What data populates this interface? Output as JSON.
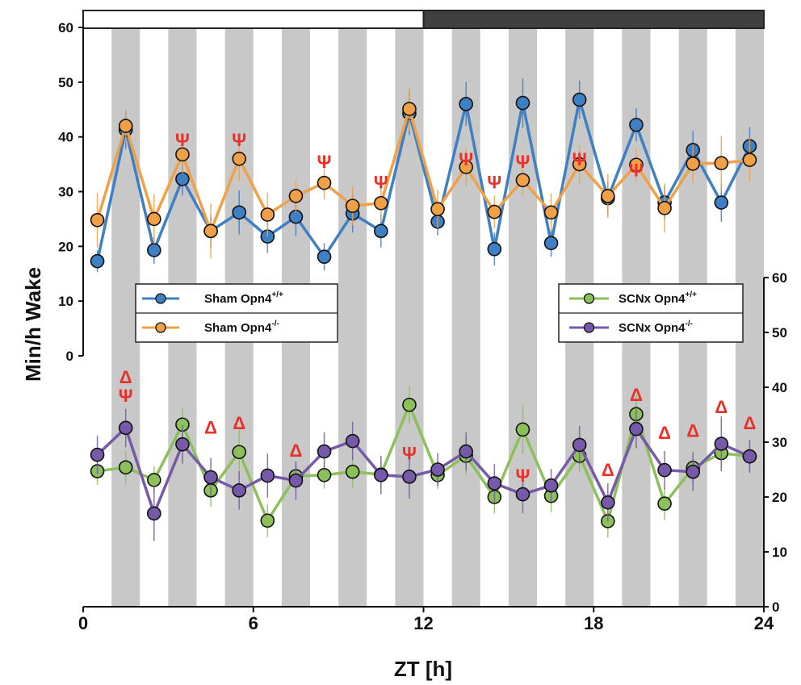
{
  "chart_data": {
    "type": "line",
    "xlabel": "ZT [h]",
    "ylabel": "Min/h Wake",
    "x_ticks": [
      "0",
      "6",
      "12",
      "18",
      "24"
    ],
    "x_range": [
      0,
      24
    ],
    "light_dark_bar": {
      "light": [
        0,
        12
      ],
      "dark": [
        12,
        24
      ],
      "light_color": "#ffffff",
      "dark_color": "#404040"
    },
    "stripe_color": "#c8c8c8",
    "stripes": [
      [
        1,
        2
      ],
      [
        3,
        4
      ],
      [
        5,
        6
      ],
      [
        7,
        8
      ],
      [
        9,
        10
      ],
      [
        11,
        12
      ],
      [
        13,
        14
      ],
      [
        15,
        16
      ],
      [
        17,
        18
      ],
      [
        19,
        20
      ],
      [
        21,
        22
      ],
      [
        23,
        24
      ]
    ],
    "panels": [
      {
        "name": "top",
        "axis_side": "left",
        "y_range": [
          0,
          60
        ],
        "y_ticks": [
          "0",
          "10",
          "20",
          "30",
          "40",
          "50",
          "60"
        ],
        "series": [
          {
            "name": "Sham Opn4",
            "sup": "+/+",
            "color": "#3f7fc4",
            "x": [
              0.5,
              1.5,
              2.5,
              3.5,
              4.5,
              5.5,
              6.5,
              7.5,
              8.5,
              9.5,
              10.5,
              11.5,
              12.5,
              13.5,
              14.5,
              15.5,
              16.5,
              17.5,
              18.5,
              19.5,
              20.5,
              21.5,
              22.5,
              23.5
            ],
            "values": [
              17.3,
              41.3,
              19.3,
              32.3,
              22.8,
              26.2,
              21.8,
              25.4,
              18.1,
              26.0,
              22.8,
              44.3,
              24.5,
              46.0,
              19.5,
              46.2,
              20.6,
              46.8,
              28.8,
              42.2,
              28.0,
              37.6,
              28.0,
              38.3
            ],
            "errors": [
              2.0,
              3.5,
              2.5,
              3.0,
              3.0,
              4.0,
              3.0,
              3.5,
              2.5,
              3.5,
              3.0,
              4.0,
              2.5,
              4.0,
              3.0,
              4.5,
              2.5,
              3.5,
              3.0,
              3.0,
              3.0,
              3.5,
              3.5,
              3.5
            ]
          },
          {
            "name": "Sham Opn4",
            "sup": "-/-",
            "color": "#f0a046",
            "x": [
              0.5,
              1.5,
              2.5,
              3.5,
              4.5,
              5.5,
              6.5,
              7.5,
              8.5,
              9.5,
              10.5,
              11.5,
              12.5,
              13.5,
              14.5,
              15.5,
              16.5,
              17.5,
              18.5,
              19.5,
              20.5,
              21.5,
              22.5,
              23.5
            ],
            "values": [
              24.8,
              42.0,
              25.0,
              36.8,
              22.8,
              36.0,
              25.8,
              29.2,
              31.6,
              27.4,
              27.9,
              45.1,
              26.8,
              34.5,
              26.3,
              32.1,
              26.2,
              35.0,
              29.2,
              34.9,
              27.0,
              35.1,
              35.2,
              35.8
            ],
            "errors": [
              5.0,
              3.0,
              4.5,
              3.5,
              5.0,
              4.0,
              4.0,
              3.0,
              3.0,
              3.5,
              3.5,
              4.0,
              3.5,
              3.5,
              3.0,
              3.0,
              3.5,
              3.5,
              4.0,
              3.0,
              4.5,
              3.5,
              5.0,
              4.0
            ]
          }
        ],
        "annotations": [
          {
            "x": 3.5,
            "y": 39.5,
            "text": "Ψ"
          },
          {
            "x": 5.5,
            "y": 39.5,
            "text": "Ψ"
          },
          {
            "x": 8.5,
            "y": 35.5,
            "text": "Ψ"
          },
          {
            "x": 10.5,
            "y": 31.8,
            "text": "Ψ"
          },
          {
            "x": 13.5,
            "y": 36.0,
            "text": "Ψ"
          },
          {
            "x": 14.5,
            "y": 31.8,
            "text": "Ψ"
          },
          {
            "x": 15.5,
            "y": 35.5,
            "text": "Ψ"
          },
          {
            "x": 17.5,
            "y": 36.0,
            "text": "Ψ"
          },
          {
            "x": 19.5,
            "y": 34.0,
            "text": "Ψ"
          }
        ]
      },
      {
        "name": "bottom",
        "axis_side": "right",
        "y_range": [
          0,
          60
        ],
        "y_ticks": [
          "0",
          "10",
          "20",
          "30",
          "40",
          "50",
          "60"
        ],
        "series": [
          {
            "name": "SCNx Opn4",
            "sup": "+/+",
            "color": "#8cc05a",
            "x": [
              0.5,
              1.5,
              2.5,
              3.5,
              4.5,
              5.5,
              6.5,
              7.5,
              8.5,
              9.5,
              10.5,
              11.5,
              12.5,
              13.5,
              14.5,
              15.5,
              16.5,
              17.5,
              18.5,
              19.5,
              20.5,
              21.5,
              22.5,
              23.5
            ],
            "values": [
              24.7,
              25.4,
              23.1,
              33.2,
              21.2,
              28.2,
              15.7,
              23.8,
              24.0,
              24.6,
              24.1,
              36.8,
              24.0,
              27.5,
              20.0,
              32.3,
              20.2,
              27.5,
              15.6,
              35.1,
              18.8,
              25.3,
              28.0,
              27.4
            ],
            "errors": [
              2.5,
              3.0,
              2.5,
              3.0,
              3.0,
              4.0,
              3.0,
              2.5,
              2.5,
              3.0,
              2.5,
              3.5,
              2.5,
              3.5,
              3.0,
              4.5,
              3.0,
              3.0,
              3.0,
              3.5,
              3.0,
              3.0,
              3.0,
              3.0
            ]
          },
          {
            "name": "SCNx Opn4",
            "sup": "-/-",
            "color": "#7659a8",
            "x": [
              0.5,
              1.5,
              2.5,
              3.5,
              4.5,
              5.5,
              6.5,
              7.5,
              8.5,
              9.5,
              10.5,
              11.5,
              12.5,
              13.5,
              14.5,
              15.5,
              16.5,
              17.5,
              18.5,
              19.5,
              20.5,
              21.5,
              22.5,
              23.5
            ],
            "values": [
              27.7,
              32.6,
              17.0,
              29.6,
              23.6,
              21.2,
              23.9,
              23.0,
              28.3,
              30.2,
              24.0,
              23.7,
              25.0,
              28.3,
              22.5,
              20.5,
              22.1,
              29.5,
              19.0,
              32.4,
              24.9,
              24.6,
              29.7,
              27.4
            ],
            "errors": [
              3.5,
              3.5,
              5.0,
              3.5,
              3.5,
              3.5,
              4.0,
              3.5,
              3.5,
              3.5,
              3.5,
              4.0,
              3.0,
              3.5,
              3.5,
              3.5,
              3.0,
              3.5,
              3.5,
              3.5,
              3.5,
              3.5,
              5.0,
              3.0
            ]
          }
        ],
        "annotations": [
          {
            "x": 1.5,
            "y": 38.5,
            "text": "Ψ"
          },
          {
            "x": 1.5,
            "y": 41.9,
            "text": "Δ"
          },
          {
            "x": 4.5,
            "y": 32.7,
            "text": "Δ"
          },
          {
            "x": 5.5,
            "y": 33.5,
            "text": "Δ"
          },
          {
            "x": 7.5,
            "y": 28.5,
            "text": "Δ"
          },
          {
            "x": 11.5,
            "y": 28.0,
            "text": "Ψ"
          },
          {
            "x": 15.5,
            "y": 24.0,
            "text": "Ψ"
          },
          {
            "x": 18.5,
            "y": 25.0,
            "text": "Δ"
          },
          {
            "x": 19.5,
            "y": 38.7,
            "text": "Δ"
          },
          {
            "x": 20.5,
            "y": 31.8,
            "text": "Δ"
          },
          {
            "x": 21.5,
            "y": 32.1,
            "text": "Δ"
          },
          {
            "x": 22.5,
            "y": 36.5,
            "text": "Δ"
          },
          {
            "x": 23.5,
            "y": 33.5,
            "text": "Δ"
          }
        ]
      }
    ],
    "legends": [
      {
        "panel": "top",
        "placement": "left",
        "entries": [
          0,
          1
        ]
      },
      {
        "panel": "bottom",
        "placement": "right",
        "entries": [
          0,
          1
        ]
      }
    ]
  }
}
